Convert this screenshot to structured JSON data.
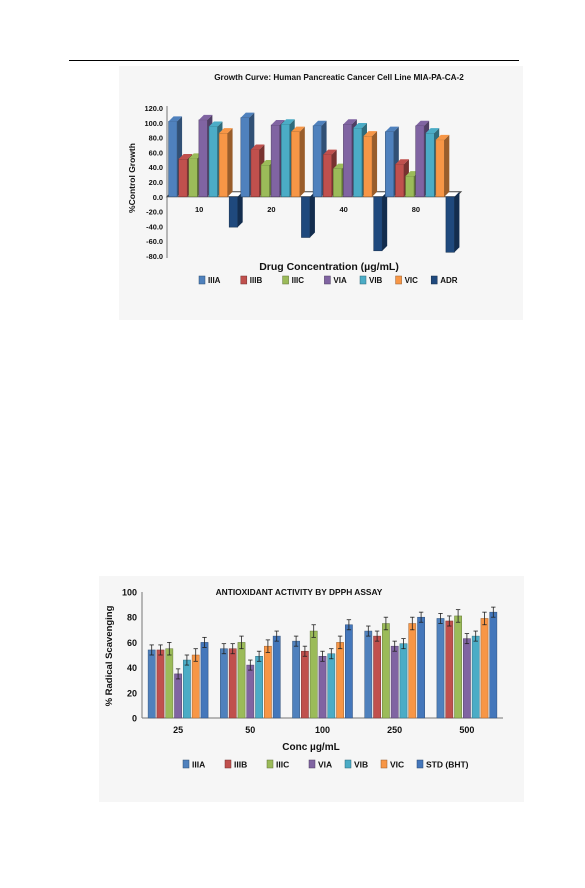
{
  "chart_data": [
    {
      "type": "bar",
      "title": "Growth Curve: Human Pancreatic Cancer Cell Line MIA-PA-CA-2",
      "xlabel": "Drug Concentration (µg/mL)",
      "ylabel": "%Control Growth",
      "ylim": [
        -80,
        120
      ],
      "yticks": [
        "120.0",
        "100.0",
        "80.0",
        "60.0",
        "40.0",
        "20.0",
        "0.0",
        "-20.0",
        "-40.0",
        "-60.0",
        "-80.0"
      ],
      "categories": [
        "10",
        "20",
        "40",
        "80"
      ],
      "grid": false,
      "legend_position": "bottom",
      "style": "3d",
      "series": [
        {
          "name": "IIIA",
          "color": "#4f81bd",
          "values": [
            102,
            107,
            96,
            88
          ]
        },
        {
          "name": "IIIB",
          "color": "#c0504d",
          "values": [
            51,
            64,
            57,
            44
          ]
        },
        {
          "name": "IIIC",
          "color": "#9bbb59",
          "values": [
            52,
            43,
            38,
            28
          ]
        },
        {
          "name": "VIA",
          "color": "#8064a2",
          "values": [
            104,
            97,
            98,
            96
          ]
        },
        {
          "name": "VIB",
          "color": "#4bacc6",
          "values": [
            95,
            98,
            93,
            86
          ]
        },
        {
          "name": "VIC",
          "color": "#f79646",
          "values": [
            86,
            88,
            82,
            77
          ]
        },
        {
          "name": "ADR",
          "color": "#1f497d",
          "values": [
            -41,
            -55,
            -73,
            -75
          ]
        }
      ]
    },
    {
      "type": "bar",
      "title": "ANTIOXIDANT ACTIVITY BY DPPH ASSAY",
      "xlabel": "Conc µg/mL",
      "ylabel": "% Radical Scavenging",
      "ylim": [
        0,
        100
      ],
      "yticks": [
        "0",
        "20",
        "40",
        "60",
        "80",
        "100"
      ],
      "categories": [
        "25",
        "50",
        "100",
        "250",
        "500"
      ],
      "grid": false,
      "error_bars": true,
      "legend_position": "bottom",
      "series": [
        {
          "name": "IIIA",
          "color": "#4f81bd",
          "values": [
            54,
            55,
            61,
            69,
            79
          ],
          "errors": [
            4,
            4,
            4,
            4,
            4
          ]
        },
        {
          "name": "IIIB",
          "color": "#c0504d",
          "values": [
            54,
            55,
            53,
            65,
            77
          ],
          "errors": [
            4,
            4,
            4,
            4,
            4
          ]
        },
        {
          "name": "IIIC",
          "color": "#9bbb59",
          "values": [
            55,
            60,
            69,
            75,
            81
          ],
          "errors": [
            5,
            5,
            5,
            5,
            5
          ]
        },
        {
          "name": "VIA",
          "color": "#8064a2",
          "values": [
            35,
            42,
            49,
            57,
            63
          ],
          "errors": [
            4,
            4,
            4,
            4,
            4
          ]
        },
        {
          "name": "VIB",
          "color": "#4bacc6",
          "values": [
            46,
            49,
            51,
            59,
            65
          ],
          "errors": [
            4,
            4,
            4,
            4,
            4
          ]
        },
        {
          "name": "VIC",
          "color": "#f79646",
          "values": [
            50,
            57,
            60,
            75,
            79
          ],
          "errors": [
            5,
            5,
            5,
            5,
            5
          ]
        },
        {
          "name": "STD (BHT)",
          "color": "#4477bb",
          "values": [
            60,
            65,
            74,
            80,
            84
          ],
          "errors": [
            4,
            4,
            4,
            4,
            4
          ]
        }
      ]
    }
  ]
}
